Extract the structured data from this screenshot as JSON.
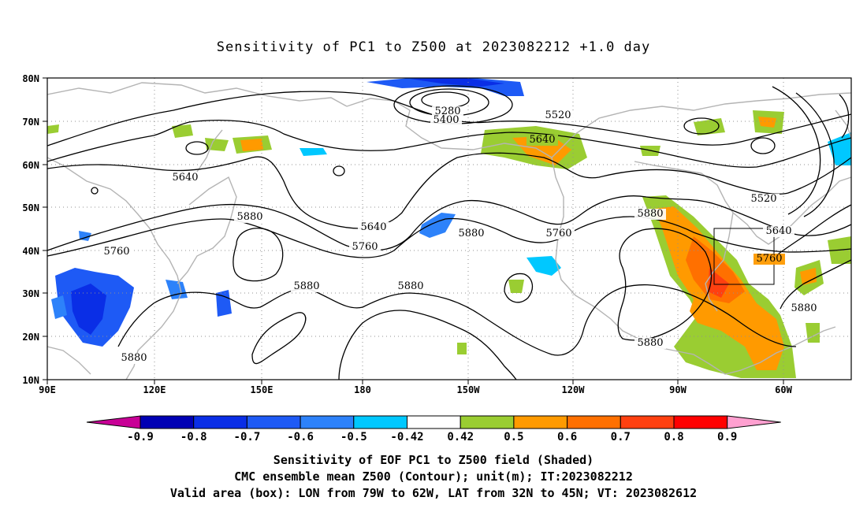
{
  "title": "Sensitivity of PC1 to Z500 at 2023082212 +1.0 day",
  "lat_ticks": [
    "80N",
    "70N",
    "60N",
    "50N",
    "40N",
    "30N",
    "20N",
    "10N"
  ],
  "lon_ticks": [
    "90E",
    "120E",
    "150E",
    "180",
    "150W",
    "120W",
    "90W",
    "60W"
  ],
  "contour_labels": [
    {
      "text": "5280"
    },
    {
      "text": "5400"
    },
    {
      "text": "5520"
    },
    {
      "text": "5640"
    },
    {
      "text": "5640"
    },
    {
      "text": "5640"
    },
    {
      "text": "5520"
    },
    {
      "text": "5640"
    },
    {
      "text": "5880"
    },
    {
      "text": "5880"
    },
    {
      "text": "5880"
    },
    {
      "text": "5880"
    },
    {
      "text": "5880"
    },
    {
      "text": "5880"
    },
    {
      "text": "5880"
    },
    {
      "text": "5760"
    },
    {
      "text": "5760"
    },
    {
      "text": "5760"
    },
    {
      "text": "5760"
    }
  ],
  "colorbar": {
    "labels": [
      "-0.9",
      "-0.8",
      "-0.7",
      "-0.6",
      "-0.5",
      "-0.42",
      "0.42",
      "0.5",
      "0.6",
      "0.7",
      "0.8",
      "0.9"
    ],
    "colors": [
      "#0000b4",
      "#0a2ee6",
      "#1e5af5",
      "#2d82fa",
      "#00c8ff",
      "#ffffff",
      "#9acd32",
      "#ff9a00",
      "#ff7000",
      "#ff4010",
      "#ff0000"
    ],
    "under_color": "#c80096",
    "over_color": "#ffa0d0"
  },
  "captions": [
    "Sensitivity of EOF PC1 to Z500 field (Shaded)",
    "CMC ensemble mean Z500 (Contour); unit(m); IT:2023082212",
    "Valid area (box): LON from 79W to 62W, LAT from 32N to 45N; VT: 2023082612"
  ],
  "valid_box": {
    "lon_min": -79,
    "lon_max": -62,
    "lat_min": 32,
    "lat_max": 45
  }
}
